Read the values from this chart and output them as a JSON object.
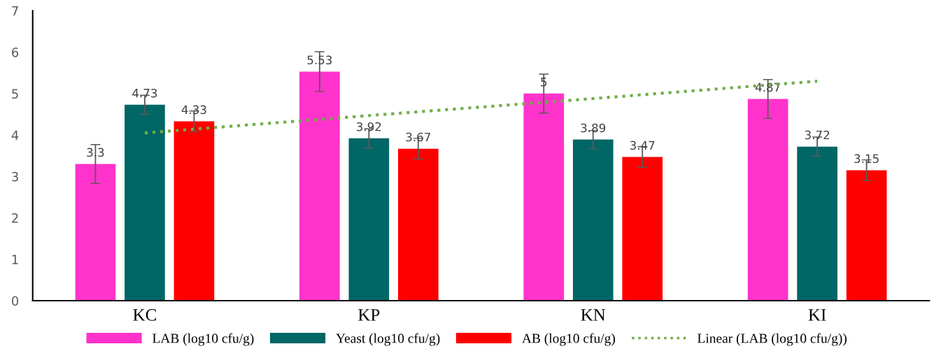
{
  "chart_data": {
    "type": "bar",
    "categories": [
      "KC",
      "KP",
      "KN",
      "KI"
    ],
    "series": [
      {
        "name": "LAB (log10 cfu/g)",
        "color": "#ff33cc",
        "values": [
          3.3,
          5.53,
          5,
          4.87
        ],
        "value_labels": [
          "3.3",
          "5.53",
          "5",
          "4.87"
        ],
        "errors": [
          0.47,
          0.48,
          0.47,
          0.47
        ]
      },
      {
        "name": "Yeast (log10 cfu/g)",
        "color": "#006666",
        "values": [
          4.73,
          3.92,
          3.89,
          3.72
        ],
        "value_labels": [
          "4.73",
          "3.92",
          "3.89",
          "3.72"
        ],
        "errors": [
          0.23,
          0.23,
          0.22,
          0.23
        ]
      },
      {
        "name": "AB (log10 cfu/g)",
        "color": "#ff0000",
        "values": [
          4.33,
          3.67,
          3.47,
          3.15
        ],
        "value_labels": [
          "4.33",
          "3.67",
          "3.47",
          "3.15"
        ],
        "errors": [
          0.25,
          0.25,
          0.25,
          0.25
        ]
      },
      {
        "name": "Linear (LAB (log10 cfu/g))",
        "type": "line",
        "color": "#70ad47",
        "line_style": "dotted",
        "x": [
          "KC",
          "KP",
          "KN",
          "KI"
        ],
        "values": [
          4.05,
          4.47,
          4.88,
          5.3
        ]
      }
    ],
    "ylim": [
      0,
      7
    ],
    "yticks": [
      0,
      1,
      2,
      3,
      4,
      5,
      6,
      7
    ],
    "grid": false,
    "legend": "bottom"
  }
}
